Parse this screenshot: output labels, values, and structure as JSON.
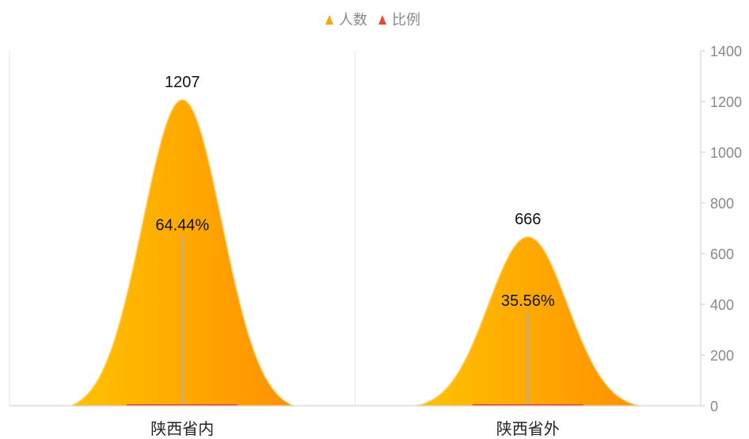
{
  "chart_data": {
    "type": "bar",
    "bar_shape": "bell",
    "categories": [
      "陕西省内",
      "陕西省外"
    ],
    "series": [
      {
        "name": "人数",
        "values": [
          1207,
          666
        ],
        "color": "#FFA500",
        "gradient": [
          "#FFC300",
          "#FF9000"
        ]
      },
      {
        "name": "比例",
        "values": [
          64.44,
          35.56
        ],
        "color": "#E8473A"
      }
    ],
    "value_labels": [
      "1207",
      "666"
    ],
    "ratio_labels": [
      "64.44%",
      "35.56%"
    ],
    "y_ticks": [
      "0",
      "200",
      "400",
      "600",
      "800",
      "1000",
      "1200",
      "1400"
    ],
    "ylim": [
      0,
      1400
    ],
    "y_axis_position": "right",
    "legend_position": "top-center",
    "grid": true,
    "title": "",
    "xlabel": "",
    "ylabel": ""
  },
  "colors": {
    "grid": "#E6E6E6",
    "axis": "#CCCCCC",
    "stem": "#B0B0B0",
    "ratio_base": "#E8473A"
  }
}
